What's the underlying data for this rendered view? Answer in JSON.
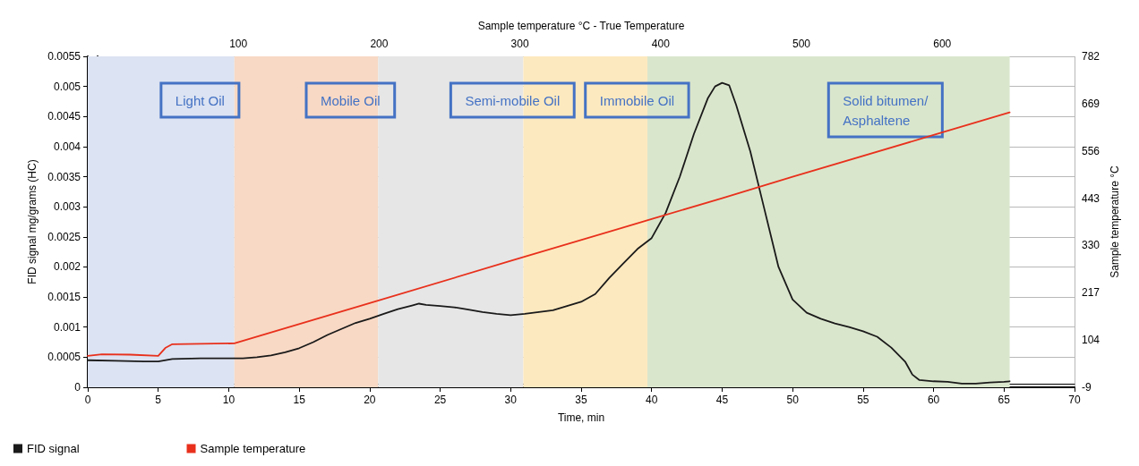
{
  "chart_data": {
    "type": "line",
    "xlabel": "Time, min",
    "ylabel": "FID signal mg/grams (HC)",
    "y2label": "Sample temperature °C",
    "x2label": "Sample temperature °C - True Temperature",
    "xlim": [
      0,
      70
    ],
    "xticks": [
      0,
      5,
      10,
      15,
      20,
      25,
      30,
      35,
      40,
      45,
      50,
      55,
      60,
      65,
      70
    ],
    "ylim": [
      0,
      0.0055
    ],
    "yticks": [
      0,
      0.0005,
      0.001,
      0.0015,
      0.002,
      0.0025,
      0.003,
      0.0035,
      0.004,
      0.0045,
      0.005,
      0.0055
    ],
    "y2lim": [
      -9,
      782
    ],
    "y2ticks": [
      -9,
      104,
      217,
      330,
      443,
      556,
      669,
      782
    ],
    "x2lim": [
      -7,
      694
    ],
    "x2ticks": [
      100,
      200,
      300,
      400,
      500,
      600
    ],
    "grid": true,
    "legend": "bottom left",
    "marker": "none",
    "line_style": "solid",
    "bands": [
      {
        "axis": "x",
        "from": 0,
        "to": 10.4,
        "label": "Light Oil",
        "color": "#dce3f2"
      },
      {
        "axis": "x",
        "from": 10.4,
        "to": 20.6,
        "label": "Mobile Oil",
        "color": "#f8d9c5"
      },
      {
        "axis": "x",
        "from": 20.6,
        "to": 30.9,
        "label": "Semi-mobile Oil",
        "color": "#e6e6e6"
      },
      {
        "axis": "x",
        "from": 30.9,
        "to": 39.7,
        "label": "Immobile Oil",
        "color": "#fde9bf"
      },
      {
        "axis": "x",
        "from": 39.7,
        "to": 65.4,
        "label": "Solid bitumen/\nAsphaltene",
        "color": "#dae6cc"
      }
    ],
    "series": [
      {
        "name": "FID signal",
        "color": "#1a1a1a",
        "x": [
          0,
          2,
          4,
          5,
          6,
          8,
          10,
          11,
          12,
          13,
          14,
          15,
          16,
          17,
          18,
          19,
          20,
          21,
          22,
          23,
          23.5,
          24,
          25,
          26,
          27,
          28,
          29,
          30,
          31,
          32,
          33,
          34,
          35,
          36,
          37,
          38,
          39,
          40,
          41,
          42,
          43,
          44,
          44.5,
          45,
          45.5,
          46,
          47,
          48,
          49,
          50,
          51,
          52,
          53,
          54,
          55,
          56,
          57,
          58,
          58.5,
          59,
          60,
          61,
          62,
          63,
          64,
          65,
          65.4
        ],
        "values": [
          0.00045,
          0.00044,
          0.00043,
          0.00043,
          0.00047,
          0.00048,
          0.00048,
          0.00048,
          0.0005,
          0.00053,
          0.00058,
          0.00065,
          0.00075,
          0.00087,
          0.00097,
          0.00107,
          0.00114,
          0.00122,
          0.0013,
          0.00136,
          0.00139,
          0.00137,
          0.00135,
          0.00133,
          0.00129,
          0.00125,
          0.00122,
          0.0012,
          0.00122,
          0.00125,
          0.00128,
          0.00135,
          0.00142,
          0.00155,
          0.00182,
          0.00206,
          0.0023,
          0.00248,
          0.0029,
          0.0035,
          0.00421,
          0.00481,
          0.005,
          0.00506,
          0.00502,
          0.00469,
          0.00392,
          0.00296,
          0.002,
          0.00146,
          0.00124,
          0.00114,
          0.00106,
          0.001,
          0.00093,
          0.00084,
          0.00066,
          0.00042,
          0.00021,
          0.00012,
          0.0001,
          9e-05,
          6e-05,
          6e-05,
          8e-05,
          9e-05,
          0.0001
        ]
      },
      {
        "name": "Sample temperature",
        "color": "#e8301c",
        "axis": "y2",
        "x": [
          0,
          1,
          3,
          5,
          5.5,
          6,
          8,
          10.4,
          20,
          30,
          40,
          45,
          50,
          60,
          65.4
        ],
        "values": [
          66,
          70,
          69,
          66,
          85,
          94,
          95,
          96,
          192,
          293,
          393,
          443,
          494,
          594,
          648
        ]
      }
    ]
  }
}
